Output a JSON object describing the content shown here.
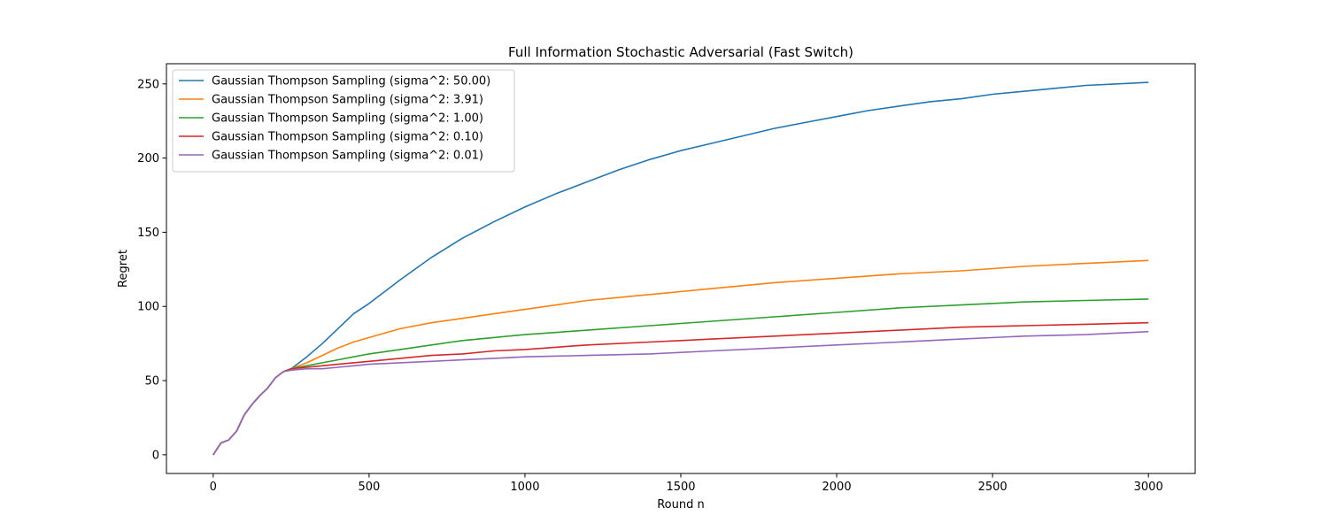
{
  "chart_data": {
    "type": "line",
    "title": "Full Information Stochastic Adversarial (Fast Switch)",
    "xlabel": "Round n",
    "ylabel": "Regret",
    "xlim": [
      -150,
      3150
    ],
    "ylim": [
      -12.6,
      263.6
    ],
    "xticks": [
      0,
      500,
      1000,
      1500,
      2000,
      2500,
      3000
    ],
    "yticks": [
      0,
      50,
      100,
      150,
      200,
      250
    ],
    "grid": false,
    "legend_position": "top-left",
    "series": [
      {
        "name": "Gaussian Thompson Sampling (sigma^2: 50.00)",
        "color": "#1f77b4",
        "x": [
          0,
          25,
          50,
          75,
          100,
          125,
          150,
          175,
          200,
          225,
          250,
          300,
          350,
          400,
          450,
          500,
          600,
          700,
          800,
          900,
          1000,
          1100,
          1200,
          1300,
          1400,
          1500,
          1600,
          1700,
          1800,
          1900,
          2000,
          2100,
          2200,
          2300,
          2400,
          2500,
          2600,
          2700,
          2800,
          2900,
          3000
        ],
        "y": [
          0,
          8,
          10,
          16,
          27,
          34,
          40,
          45,
          52,
          56,
          58,
          66,
          75,
          85,
          95,
          102,
          118,
          133,
          146,
          157,
          167,
          176,
          184,
          192,
          199,
          205,
          210,
          215,
          220,
          224,
          228,
          232,
          235,
          238,
          240,
          243,
          245,
          247,
          249,
          250,
          251
        ]
      },
      {
        "name": "Gaussian Thompson Sampling (sigma^2: 3.91)",
        "color": "#ff7f0e",
        "x": [
          0,
          25,
          50,
          75,
          100,
          125,
          150,
          175,
          200,
          225,
          250,
          300,
          350,
          400,
          450,
          500,
          600,
          700,
          800,
          900,
          1000,
          1200,
          1400,
          1600,
          1800,
          2000,
          2200,
          2400,
          2600,
          2800,
          3000
        ],
        "y": [
          0,
          8,
          10,
          16,
          27,
          34,
          40,
          45,
          52,
          56,
          58,
          62,
          67,
          72,
          76,
          79,
          85,
          89,
          92,
          95,
          98,
          104,
          108,
          112,
          116,
          119,
          122,
          124,
          127,
          129,
          131
        ]
      },
      {
        "name": "Gaussian Thompson Sampling (sigma^2: 1.00)",
        "color": "#2ca02c",
        "x": [
          0,
          25,
          50,
          75,
          100,
          125,
          150,
          175,
          200,
          225,
          250,
          300,
          350,
          400,
          450,
          500,
          600,
          700,
          800,
          900,
          1000,
          1200,
          1400,
          1600,
          1800,
          2000,
          2200,
          2400,
          2600,
          2800,
          3000
        ],
        "y": [
          0,
          8,
          10,
          16,
          27,
          34,
          40,
          45,
          52,
          56,
          58,
          60,
          62,
          64,
          66,
          68,
          71,
          74,
          77,
          79,
          81,
          84,
          87,
          90,
          93,
          96,
          99,
          101,
          103,
          104,
          105
        ]
      },
      {
        "name": "Gaussian Thompson Sampling (sigma^2: 0.10)",
        "color": "#d62728",
        "x": [
          0,
          25,
          50,
          75,
          100,
          125,
          150,
          175,
          200,
          225,
          250,
          300,
          350,
          400,
          450,
          500,
          600,
          700,
          800,
          900,
          1000,
          1200,
          1400,
          1600,
          1800,
          2000,
          2200,
          2400,
          2600,
          2800,
          3000
        ],
        "y": [
          0,
          8,
          10,
          16,
          27,
          34,
          40,
          45,
          52,
          56,
          58,
          59,
          60,
          61,
          62,
          63,
          65,
          67,
          68,
          70,
          71,
          74,
          76,
          78,
          80,
          82,
          84,
          86,
          87,
          88,
          89
        ]
      },
      {
        "name": "Gaussian Thompson Sampling (sigma^2: 0.01)",
        "color": "#9467bd",
        "x": [
          0,
          25,
          50,
          75,
          100,
          125,
          150,
          175,
          200,
          225,
          250,
          300,
          350,
          400,
          450,
          500,
          600,
          700,
          800,
          900,
          1000,
          1200,
          1400,
          1600,
          1800,
          2000,
          2200,
          2400,
          2600,
          2800,
          3000
        ],
        "y": [
          0,
          8,
          10,
          16,
          27,
          34,
          40,
          45,
          52,
          56,
          57,
          58,
          58,
          59,
          60,
          61,
          62,
          63,
          64,
          65,
          66,
          67,
          68,
          70,
          72,
          74,
          76,
          78,
          80,
          81,
          83
        ]
      }
    ]
  }
}
